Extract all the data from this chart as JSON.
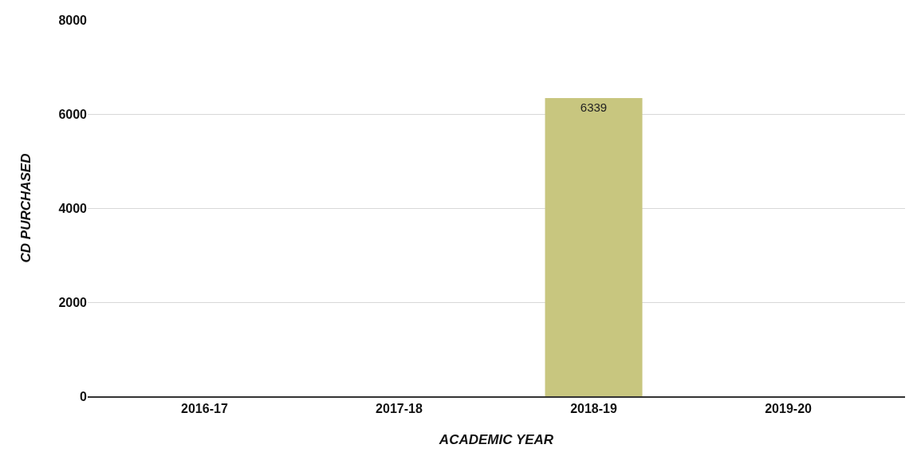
{
  "chart_data": {
    "type": "bar",
    "xlabel": "ACADEMIC YEAR",
    "ylabel": "CD PURCHASED",
    "categories": [
      "2016-17",
      "2017-18",
      "2018-19",
      "2019-20"
    ],
    "values": [
      0,
      0,
      6339,
      0
    ],
    "value_labels": [
      null,
      null,
      "6339",
      null
    ],
    "color": "#c8c67f",
    "ylim": [
      0,
      8000
    ],
    "yticks": [
      0,
      2000,
      4000,
      6000,
      8000
    ],
    "grid": "y",
    "legend": false
  }
}
